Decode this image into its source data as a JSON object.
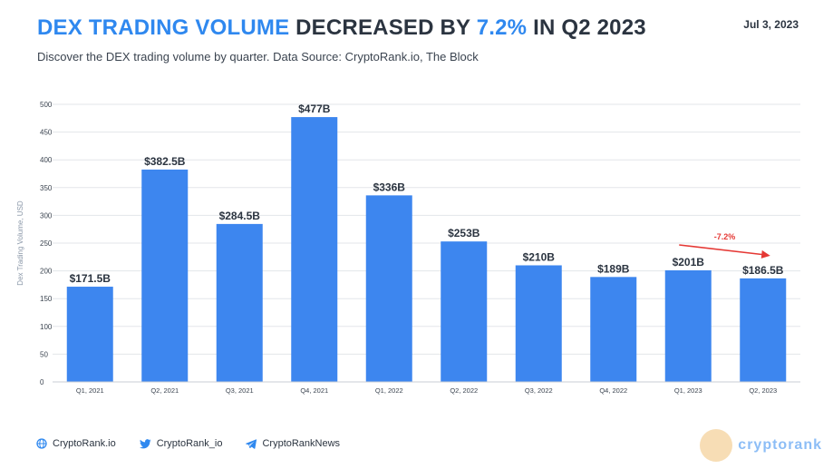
{
  "header": {
    "title_highlight_1": "DEX TRADING VOLUME",
    "title_part_2": " DECREASED BY ",
    "title_highlight_2": "7.2%",
    "title_part_3": " IN Q2 2023",
    "date": "Jul 3, 2023",
    "subtitle": "Discover the DEX trading volume by quarter. Data Source: CryptoRank.io, The Block"
  },
  "chart_data": {
    "type": "bar",
    "title": "DEX TRADING VOLUME DECREASED BY 7.2% IN Q2 2023",
    "ylabel": "Dex Trading Volume, USD",
    "xlabel": "",
    "ylim": [
      0,
      500
    ],
    "yticks": [
      "0",
      "50",
      "100",
      "150",
      "200",
      "250",
      "300",
      "350",
      "400",
      "450",
      "500"
    ],
    "grid": true,
    "categories": [
      "Q1, 2021",
      "Q2, 2021",
      "Q3, 2021",
      "Q4, 2021",
      "Q1, 2022",
      "Q2, 2022",
      "Q3, 2022",
      "Q4, 2022",
      "Q1, 2023",
      "Q2, 2023"
    ],
    "values": [
      171.5,
      382.5,
      284.5,
      477,
      336,
      253,
      210,
      189,
      201,
      186.5
    ],
    "data_labels": [
      "$171.5B",
      "$382.5B",
      "$284.5B",
      "$477B",
      "$336B",
      "$253B",
      "$210B",
      "$189B",
      "$201B",
      "$186.5B"
    ],
    "annotation": {
      "text": "-7.2%",
      "from_category": "Q1, 2023",
      "to_category": "Q2, 2023",
      "color": "#e53935"
    },
    "bar_color": "#3d86ef"
  },
  "footer": {
    "website": "CryptoRank.io",
    "twitter": "CryptoRank_io",
    "telegram": "CryptoRankNews"
  },
  "watermark": {
    "text": "cryptorank"
  },
  "colors": {
    "accent": "#2f88ef",
    "text": "#2b3440",
    "grid": "#e3e6ea",
    "axis_text": "#3b4450"
  }
}
